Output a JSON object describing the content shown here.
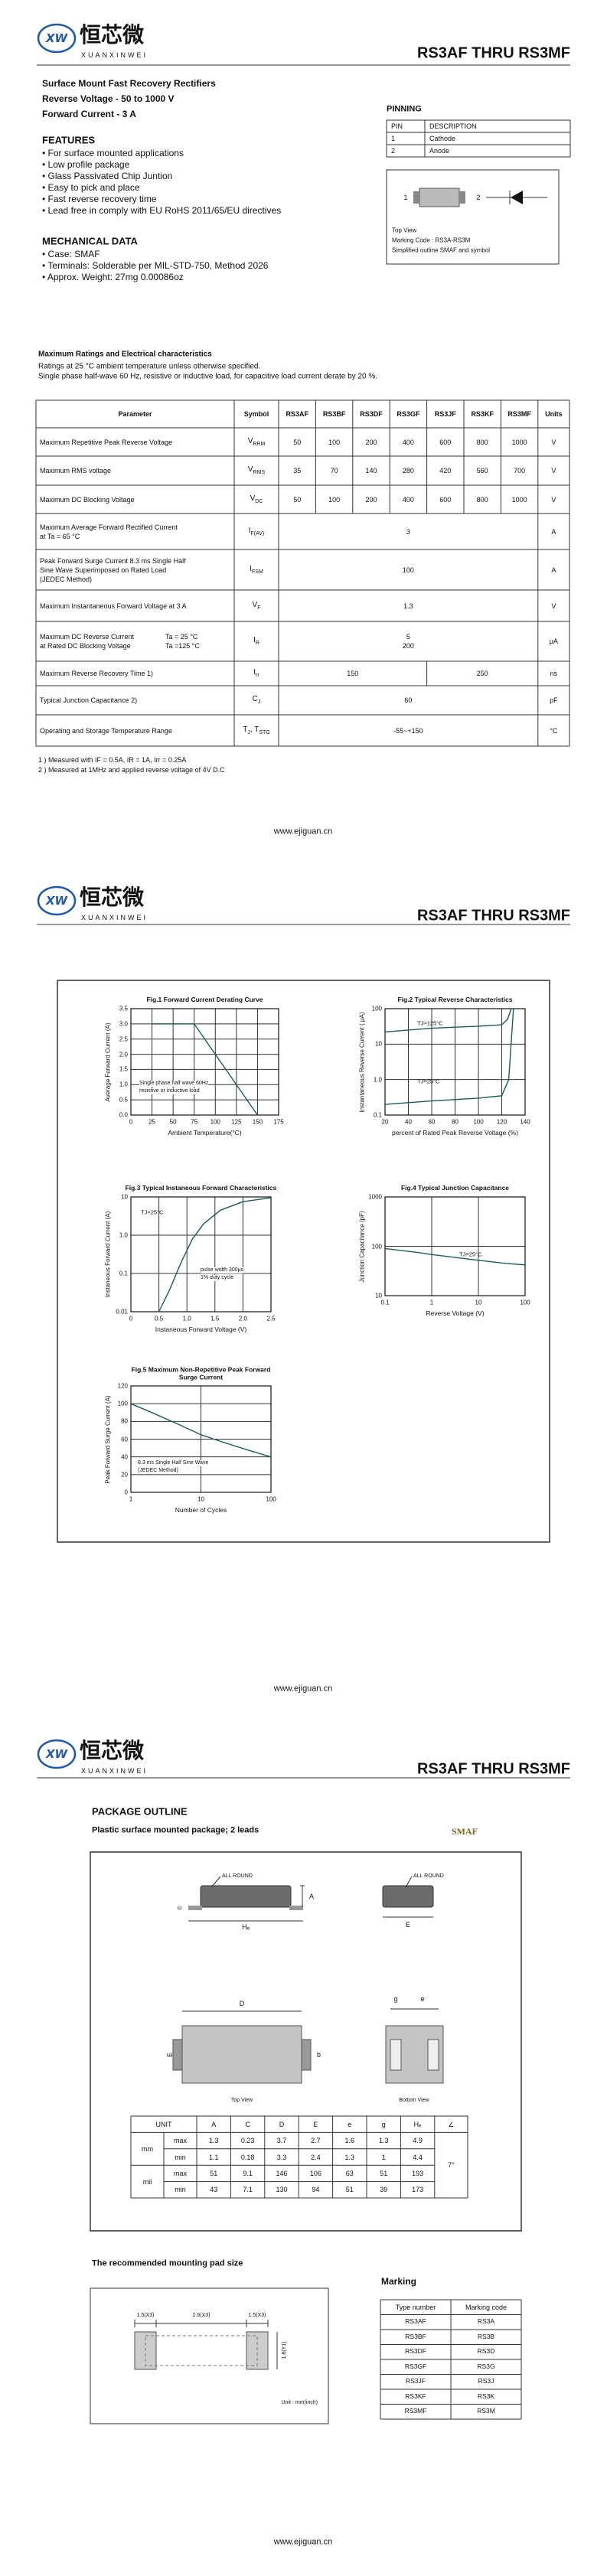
{
  "header": {
    "logo": "XW",
    "brand_cn": "恒芯微",
    "brand_en": "XUANXINWEI",
    "part_range": "RS3AF  THRU  RS3MF"
  },
  "footer": "www.ejiguan.cn",
  "intro": {
    "title": "Surface Mount Fast Recovery Rectifiers",
    "voltage": "Reverse Voltage - 50 to 1000 V",
    "current": "Forward Current - 3 A"
  },
  "features": {
    "heading": "FEATURES",
    "items": [
      "• For surface mounted applications",
      "• Low profile package",
      "• Glass Passivated Chip Juntion",
      "• Easy to pick and place",
      "• Fast reverse recovery time",
      "• Lead free in comply with EU RoHS 2011/65/EU directives"
    ]
  },
  "mechanical": {
    "heading": "MECHANICAL DATA",
    "items": [
      "• Case: SMAF",
      "• Terminals: Solderable per MIL-STD-750, Method 2026",
      "• Approx. Weight:  27mg  0.00086oz"
    ]
  },
  "pinning": {
    "heading": "PINNING",
    "columns": [
      "PIN",
      "DESCRIPTION"
    ],
    "rows": [
      [
        "1",
        "Cathode"
      ],
      [
        "2",
        "Anode"
      ]
    ],
    "diagram": {
      "pin1": "1",
      "pin2": "2",
      "view": "Top View",
      "marking": "Marking Code :  RS3A-RS3M",
      "caption": "Simplified outline SMAF and symbol"
    }
  },
  "ratings": {
    "heading": "Maximum Ratings and Electrical characteristics",
    "notes": [
      "Ratings at 25 °C ambient temperature unless otherwise specified.",
      "Single phase half-wave 60 Hz, resistive or inductive load, for capacitive load current derate by 20 %."
    ],
    "columns": [
      "Parameter",
      "Symbol",
      "RS3AF",
      "RS3BF",
      "RS3DF",
      "RS3GF",
      "RS3JF",
      "RS3KF",
      "RS3MF",
      "Units"
    ],
    "rows": [
      {
        "param": [
          "Maximum Repetitive Peak Reverse Voltage"
        ],
        "sym": [
          [
            "V",
            "RRM"
          ]
        ],
        "values": [
          50,
          100,
          200,
          400,
          600,
          800,
          1000
        ],
        "unit": "V"
      },
      {
        "param": [
          "Maximum RMS voltage"
        ],
        "sym": [
          [
            "V",
            "RMS"
          ]
        ],
        "values": [
          35,
          70,
          140,
          280,
          420,
          560,
          700
        ],
        "unit": "V"
      },
      {
        "param": [
          "Maximum DC Blocking Voltage"
        ],
        "sym": [
          [
            "V",
            "DC"
          ]
        ],
        "values": [
          50,
          100,
          200,
          400,
          600,
          800,
          1000
        ],
        "unit": "V"
      },
      {
        "param": [
          "Maximum Average Forward Rectified Current",
          "at Ta = 65 °C"
        ],
        "sym": [
          [
            "I",
            "F(AV)"
          ]
        ],
        "values": [
          3
        ],
        "unit": "A"
      },
      {
        "param": [
          "Peak Forward Surge Current 8.3 ms Single Half",
          "Sine Wave Superimposed on Rated Load",
          "(JEDEC Method)"
        ],
        "sym": [
          [
            "I",
            "FSM"
          ]
        ],
        "values": [
          100
        ],
        "unit": "A"
      },
      {
        "param": [
          "Maximum Instantaneous Forward Voltage at 3 A"
        ],
        "sym": [
          [
            "V",
            "F"
          ]
        ],
        "values": [
          1.3
        ],
        "unit": "V"
      },
      {
        "param": [
          "Maximum DC Reverse Current",
          "at Rated DC Blocking Voltage"
        ],
        "cond": [
          "Ta = 25 °C",
          "Ta =125 °C"
        ],
        "sym": [
          [
            "I",
            "R"
          ]
        ],
        "values": [
          [
            5,
            200
          ]
        ],
        "unit": "μA"
      },
      {
        "param": [
          "Maximum Reverse Recovery Time 1)"
        ],
        "sym": [
          [
            "t",
            "rr"
          ]
        ],
        "values": [
          150,
          250
        ],
        "unit": "ns"
      },
      {
        "param": [
          "Typical Junction Capacitance 2)"
        ],
        "sym": [
          [
            "C",
            "J"
          ]
        ],
        "values": [
          60
        ],
        "unit": "pF"
      },
      {
        "param": [
          "Operating and Storage Temperature Range"
        ],
        "sym": [
          [
            "T",
            "J"
          ],
          [
            ", T",
            "STG"
          ]
        ],
        "values": [
          "-55~+150"
        ],
        "unit": "°C"
      }
    ],
    "footnotes": [
      "1 ) Measured with IF = 0.5A, IR = 1A, Irr = 0.25A",
      "2 ) Measured at 1MHz and applied reverse voltage of 4V D.C"
    ]
  },
  "chart_data": [
    {
      "type": "line",
      "title": "Fig.1  Forward Current Derating Curve",
      "xlabel": "Ambient Temperature(°C)",
      "ylabel": "Average Forward Current (A)",
      "xlim": [
        0,
        175
      ],
      "ylim": [
        0,
        3.5
      ],
      "xticks": [
        0,
        25,
        50,
        75,
        100,
        125,
        150,
        175
      ],
      "yticks": [
        {
          "value": 0,
          "label": "0.0"
        },
        0.5,
        {
          "value": 1,
          "label": "1.0"
        },
        1.5,
        {
          "value": 2,
          "label": "2.0"
        },
        2.5,
        {
          "value": 3,
          "label": "3.0"
        },
        3.5
      ],
      "grid": true,
      "color": "#1a5c5c",
      "x": [
        25,
        75,
        150
      ],
      "values": [
        3,
        3,
        0
      ],
      "annotations": [
        "Single phase half wave 60Hz",
        "resistive or inductive load"
      ]
    },
    {
      "type": "line",
      "title": "Fig.2  Typical Reverse Characteristics",
      "xlabel": "percent of Rated Peak Reverse Voltage (%)",
      "ylabel": "Instantaneous Reverse Current ( μA)",
      "xlim": [
        20,
        140
      ],
      "ylim": [
        0.1,
        100
      ],
      "ylog": true,
      "xticks": [
        20,
        40,
        60,
        80,
        100,
        120,
        140
      ],
      "yticks": [
        0.1,
        {
          "value": 1,
          "label": "1.0"
        },
        10,
        100
      ],
      "grid": true,
      "series": [
        {
          "name": "TJ=125°C",
          "color": "#1a5c5c",
          "x": [
            20,
            40,
            60,
            80,
            100,
            120,
            125,
            128
          ],
          "values": [
            22,
            25,
            28,
            30,
            32,
            35,
            50,
            100
          ]
        },
        {
          "name": "TJ=25°C",
          "color": "#1a5c5c",
          "x": [
            20,
            60,
            100,
            120,
            126,
            128,
            130
          ],
          "values": [
            0.2,
            0.25,
            0.3,
            0.35,
            1,
            10,
            100
          ]
        }
      ]
    },
    {
      "type": "line",
      "title": "Fig.3  Typical Instaneous Forward Characteristics",
      "xlabel": "Instaneous Forward Voltage (V)",
      "ylabel": "Instaneous Forward Current (A)",
      "xlim": [
        0,
        2.5
      ],
      "ylim": [
        0.01,
        10
      ],
      "ylog": true,
      "xticks": [
        0,
        0.5,
        {
          "value": 1,
          "label": "1.0"
        },
        1.5,
        {
          "value": 2,
          "label": "2.0"
        },
        2.5
      ],
      "yticks": [
        0.01,
        0.1,
        {
          "value": 1,
          "label": "1.0"
        },
        10
      ],
      "grid": true,
      "series": [
        {
          "name": "TJ=25°C",
          "color": "#1a5c5c",
          "x": [
            0.5,
            0.7,
            0.9,
            1.1,
            1.3,
            1.6,
            2,
            2.5
          ],
          "values": [
            0.01,
            0.04,
            0.2,
            0.8,
            2,
            4.5,
            7.5,
            9.5
          ]
        }
      ],
      "annotations": [
        "pulse width 300μs",
        "1% duty cycle"
      ]
    },
    {
      "type": "line",
      "title": "Fig.4  Typical Junction Capacitance",
      "xlabel": "Reverse Voltage (V)",
      "ylabel": "Junction Capacitance (pF)",
      "xlim": [
        0.1,
        100
      ],
      "ylim": [
        10,
        1000
      ],
      "xlog": true,
      "ylog": true,
      "xticks": [
        0.1,
        1,
        10,
        100
      ],
      "yticks": [
        10,
        100,
        1000
      ],
      "grid": true,
      "series": [
        {
          "name": "TJ=25°C",
          "color": "#1a5c5c",
          "x": [
            0.1,
            0.5,
            1,
            4,
            10,
            40,
            100
          ],
          "values": [
            90,
            75,
            68,
            58,
            52,
            45,
            42
          ]
        }
      ]
    },
    {
      "type": "line",
      "title": "Fig.5  Maximum Non-Repetitive Peak Forward Surge Current",
      "xlabel": "Number of Cycles",
      "ylabel": "Peak Forward Surge Current (A)",
      "xlim": [
        1,
        100
      ],
      "ylim": [
        0,
        120
      ],
      "xlog": true,
      "xticks": [
        1,
        10,
        100
      ],
      "yticks": [
        0,
        20,
        40,
        60,
        80,
        100,
        120
      ],
      "grid": true,
      "color": "#1a5c5c",
      "x": [
        1,
        2,
        5,
        10,
        20,
        50,
        100
      ],
      "values": [
        100,
        90,
        76,
        65,
        57,
        47,
        40
      ],
      "annotations": [
        "8.3 ms Single Half Sine Wave",
        "(JEDEC Method)"
      ]
    }
  ],
  "package": {
    "heading": "PACKAGE OUTLINE",
    "subtitle": "Plastic surface mounted package; 2 leads",
    "name": "SMAF",
    "labels": {
      "all_round": "ALL ROUND",
      "A": "A",
      "c": "c",
      "He": "Hₑ",
      "E": "E",
      "D": "D",
      "b": "b",
      "e": "e",
      "g": "g",
      "top": "Top View",
      "bottom": "Bottom View"
    },
    "dimensions": {
      "columns": [
        "UNIT",
        "A",
        "C",
        "D",
        "E",
        "e",
        "g",
        "Hₑ",
        "∠"
      ],
      "rows": [
        {
          "unit": "mm",
          "limits": [
            {
              "limit": "max",
              "values": [
                1.3,
                0.23,
                3.7,
                2.7,
                1.6,
                1.3,
                4.9
              ]
            },
            {
              "limit": "min",
              "values": [
                1.1,
                0.18,
                3.3,
                2.4,
                1.3,
                1.0,
                4.4
              ]
            }
          ]
        },
        {
          "unit": "mil",
          "limits": [
            {
              "limit": "max",
              "values": [
                51,
                9.1,
                146,
                106,
                63,
                51,
                193
              ]
            },
            {
              "limit": "min",
              "values": [
                43,
                7.1,
                130,
                94,
                51,
                39,
                173
              ]
            }
          ]
        }
      ],
      "angle": "7°"
    }
  },
  "mounting": {
    "heading": "The recommended mounting pad size",
    "labels": [
      "1.5(X3)",
      "2.6(X3)",
      "1.5(X3)",
      "1.8(Y1)"
    ],
    "unit": "Unit : mm(inch)"
  },
  "marking": {
    "heading": "Marking",
    "columns": [
      "Type number",
      "Marking code"
    ],
    "rows": [
      [
        "RS3AF",
        "RS3A"
      ],
      [
        "RS3BF",
        "RS3B"
      ],
      [
        "RS3DF",
        "RS3D"
      ],
      [
        "RS3GF",
        "RS3G"
      ],
      [
        "RS3JF",
        "RS3J"
      ],
      [
        "RS3KF",
        "RS3K"
      ],
      [
        "RS3MF",
        "RS3M"
      ]
    ]
  }
}
